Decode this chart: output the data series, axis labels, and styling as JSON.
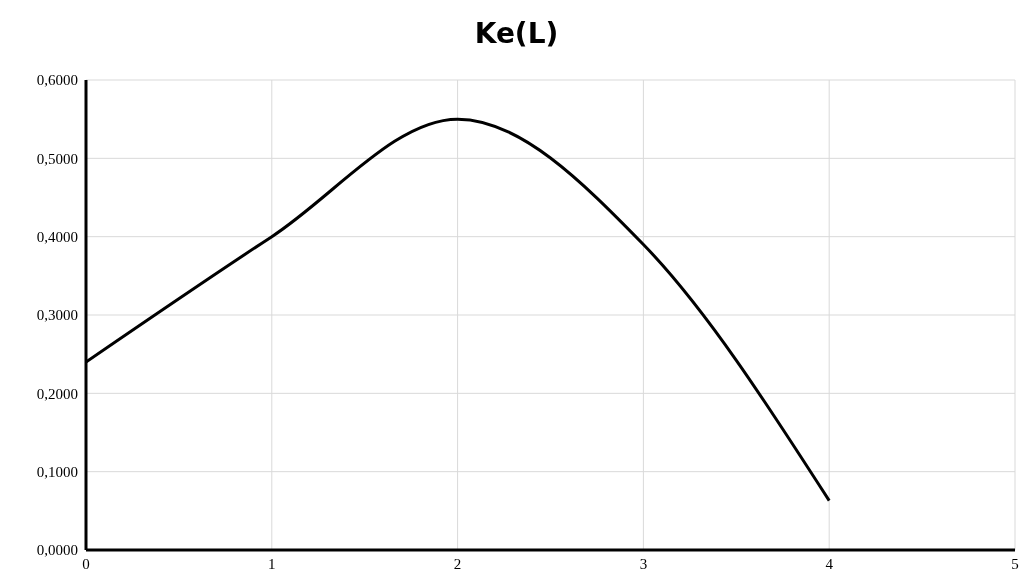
{
  "chart_data": {
    "type": "line",
    "title": "Ke(L)",
    "x": [
      0,
      1,
      2,
      3,
      4
    ],
    "series": [
      {
        "color": "#000000",
        "values": [
          0.24,
          0.4,
          0.55,
          0.39,
          0.063
        ]
      }
    ],
    "xlim": [
      0,
      5
    ],
    "xticks": [
      0,
      1,
      2,
      3,
      4,
      5
    ],
    "ylim": [
      0,
      0.6
    ],
    "yticks": [
      {
        "value": 0,
        "label": "0,0000"
      },
      {
        "value": 0.1,
        "label": "0,1000"
      },
      {
        "value": 0.2,
        "label": "0,2000"
      },
      {
        "value": 0.3,
        "label": "0,3000"
      },
      {
        "value": 0.4,
        "label": "0,4000"
      },
      {
        "value": 0.5,
        "label": "0,5000"
      },
      {
        "value": 0.6,
        "label": "0,6000"
      }
    ],
    "grid": true,
    "line_style": "solid"
  }
}
